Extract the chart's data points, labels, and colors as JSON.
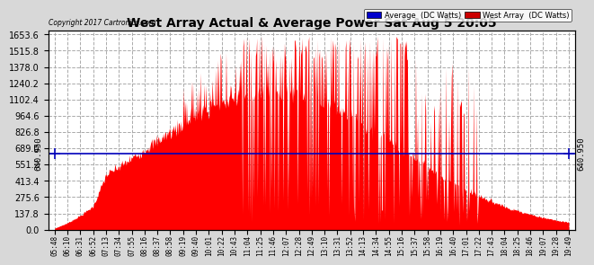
{
  "title": "West Array Actual & Average Power Sat Aug 5 20:05",
  "copyright": "Copyright 2017 Cartronics.com",
  "legend_avg_label": "Average  (DC Watts)",
  "legend_west_label": "West Array  (DC Watts)",
  "legend_avg_bg": "#0000cc",
  "legend_west_bg": "#cc0000",
  "y_ticks_right": [
    0.0,
    137.8,
    275.6,
    413.4,
    551.2,
    689.0,
    826.8,
    964.6,
    1102.4,
    1240.2,
    1378.0,
    1515.8,
    1653.6
  ],
  "horizontal_line_y": 640.95,
  "y_max": 1653.6,
  "y_min": 0.0,
  "background_color": "#d8d8d8",
  "plot_bg_color": "#ffffff",
  "grid_color": "#aaaaaa",
  "fill_color": "#ff0000",
  "hline_color": "#0000bb",
  "time_labels": [
    "05:48",
    "06:10",
    "06:31",
    "06:52",
    "07:13",
    "07:34",
    "07:55",
    "08:16",
    "08:37",
    "08:58",
    "09:19",
    "09:40",
    "10:01",
    "10:22",
    "10:43",
    "11:04",
    "11:25",
    "11:46",
    "12:07",
    "12:28",
    "12:49",
    "13:10",
    "13:31",
    "13:52",
    "14:13",
    "14:34",
    "14:55",
    "15:16",
    "15:37",
    "15:58",
    "16:19",
    "16:40",
    "17:01",
    "17:22",
    "17:43",
    "18:04",
    "18:25",
    "18:46",
    "19:07",
    "19:28",
    "19:49"
  ]
}
